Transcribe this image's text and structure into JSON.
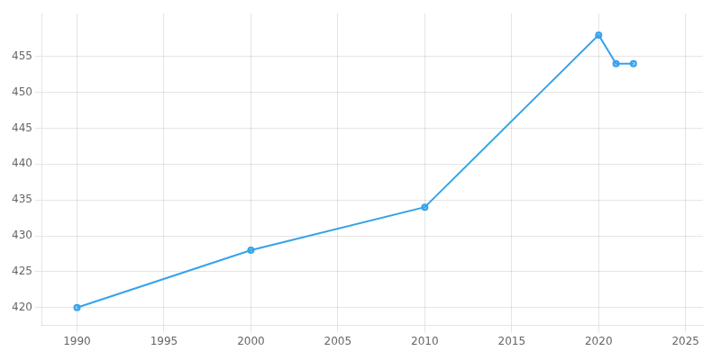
{
  "chart_data": {
    "type": "line",
    "x": [
      1990,
      2000,
      2010,
      2020,
      2021,
      2022
    ],
    "values": [
      420,
      428,
      434,
      458,
      454,
      454
    ],
    "marker": "o",
    "xlim": [
      1988,
      2026
    ],
    "ylim": [
      417.5,
      461
    ],
    "xticks": [
      1990,
      1995,
      2000,
      2005,
      2010,
      2015,
      2020,
      2025
    ],
    "yticks": [
      420,
      425,
      430,
      435,
      440,
      445,
      450,
      455
    ],
    "grid": true,
    "legend": false
  }
}
